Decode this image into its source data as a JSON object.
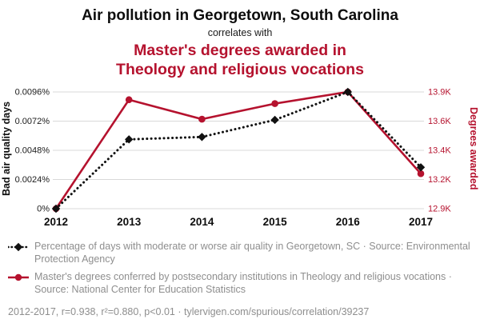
{
  "header": {
    "title": "Air pollution in Georgetown, South Carolina",
    "connector": "correlates with",
    "subtitle": "Master's degrees awarded in\nTheology and religious vocations"
  },
  "colors": {
    "red": "#b5122e",
    "black": "#111111",
    "grid": "#d9d9d9",
    "text_gray": "#8e8e8e"
  },
  "chart_data": {
    "type": "line",
    "title": "Air pollution in Georgetown, South Carolina correlates with Master's degrees awarded in Theology and religious vocations",
    "x": [
      2012,
      2013,
      2014,
      2015,
      2016,
      2017
    ],
    "series": [
      {
        "id": "air-quality",
        "name": "Percentage of days with moderate or worse air quality in Georgetown, SC",
        "axis": "left",
        "color": "#111111",
        "style": "dotted",
        "marker": "diamond",
        "values": [
          0,
          0.0057,
          0.0059,
          0.0073,
          0.0096,
          0.0034
        ]
      },
      {
        "id": "theology-degrees",
        "name": "Master's degrees conferred by postsecondary institutions in Theology and religious vocations",
        "axis": "right",
        "color": "#b5122e",
        "style": "solid",
        "marker": "circle",
        "values": [
          12.9,
          13.82,
          13.62,
          13.78,
          13.9,
          13.24
        ]
      }
    ],
    "left_axis": {
      "label": "Bad air quality days",
      "ticks": [
        "0%",
        "0.0024%",
        "0.0048%",
        "0.0072%",
        "0.0096%"
      ],
      "tick_values": [
        0,
        0.0024,
        0.0048,
        0.0072,
        0.0096
      ],
      "ylim": [
        0,
        0.0096
      ]
    },
    "right_axis": {
      "label": "Degrees awarded",
      "ticks": [
        "12.9K",
        "13.2K",
        "13.4K",
        "13.6K",
        "13.9K"
      ],
      "tick_values": [
        12.9,
        13.2,
        13.4,
        13.6,
        13.9
      ],
      "ylim": [
        12.9,
        13.9
      ]
    },
    "grid": "horizontal-only",
    "legend_position": "below"
  },
  "legend": [
    {
      "text": "Percentage of days with moderate or worse air quality in Georgetown, SC · Source: Environmental Protection Agency"
    },
    {
      "text": "Master's degrees conferred by postsecondary institutions in Theology and religious vocations · Source: National Center for Education Statistics"
    }
  ],
  "footer": {
    "stats": "2012-2017, r=0.938, r²=0.880, p<0.01 ·",
    "url": "tylervigen.com/spurious/correlation/39237"
  }
}
